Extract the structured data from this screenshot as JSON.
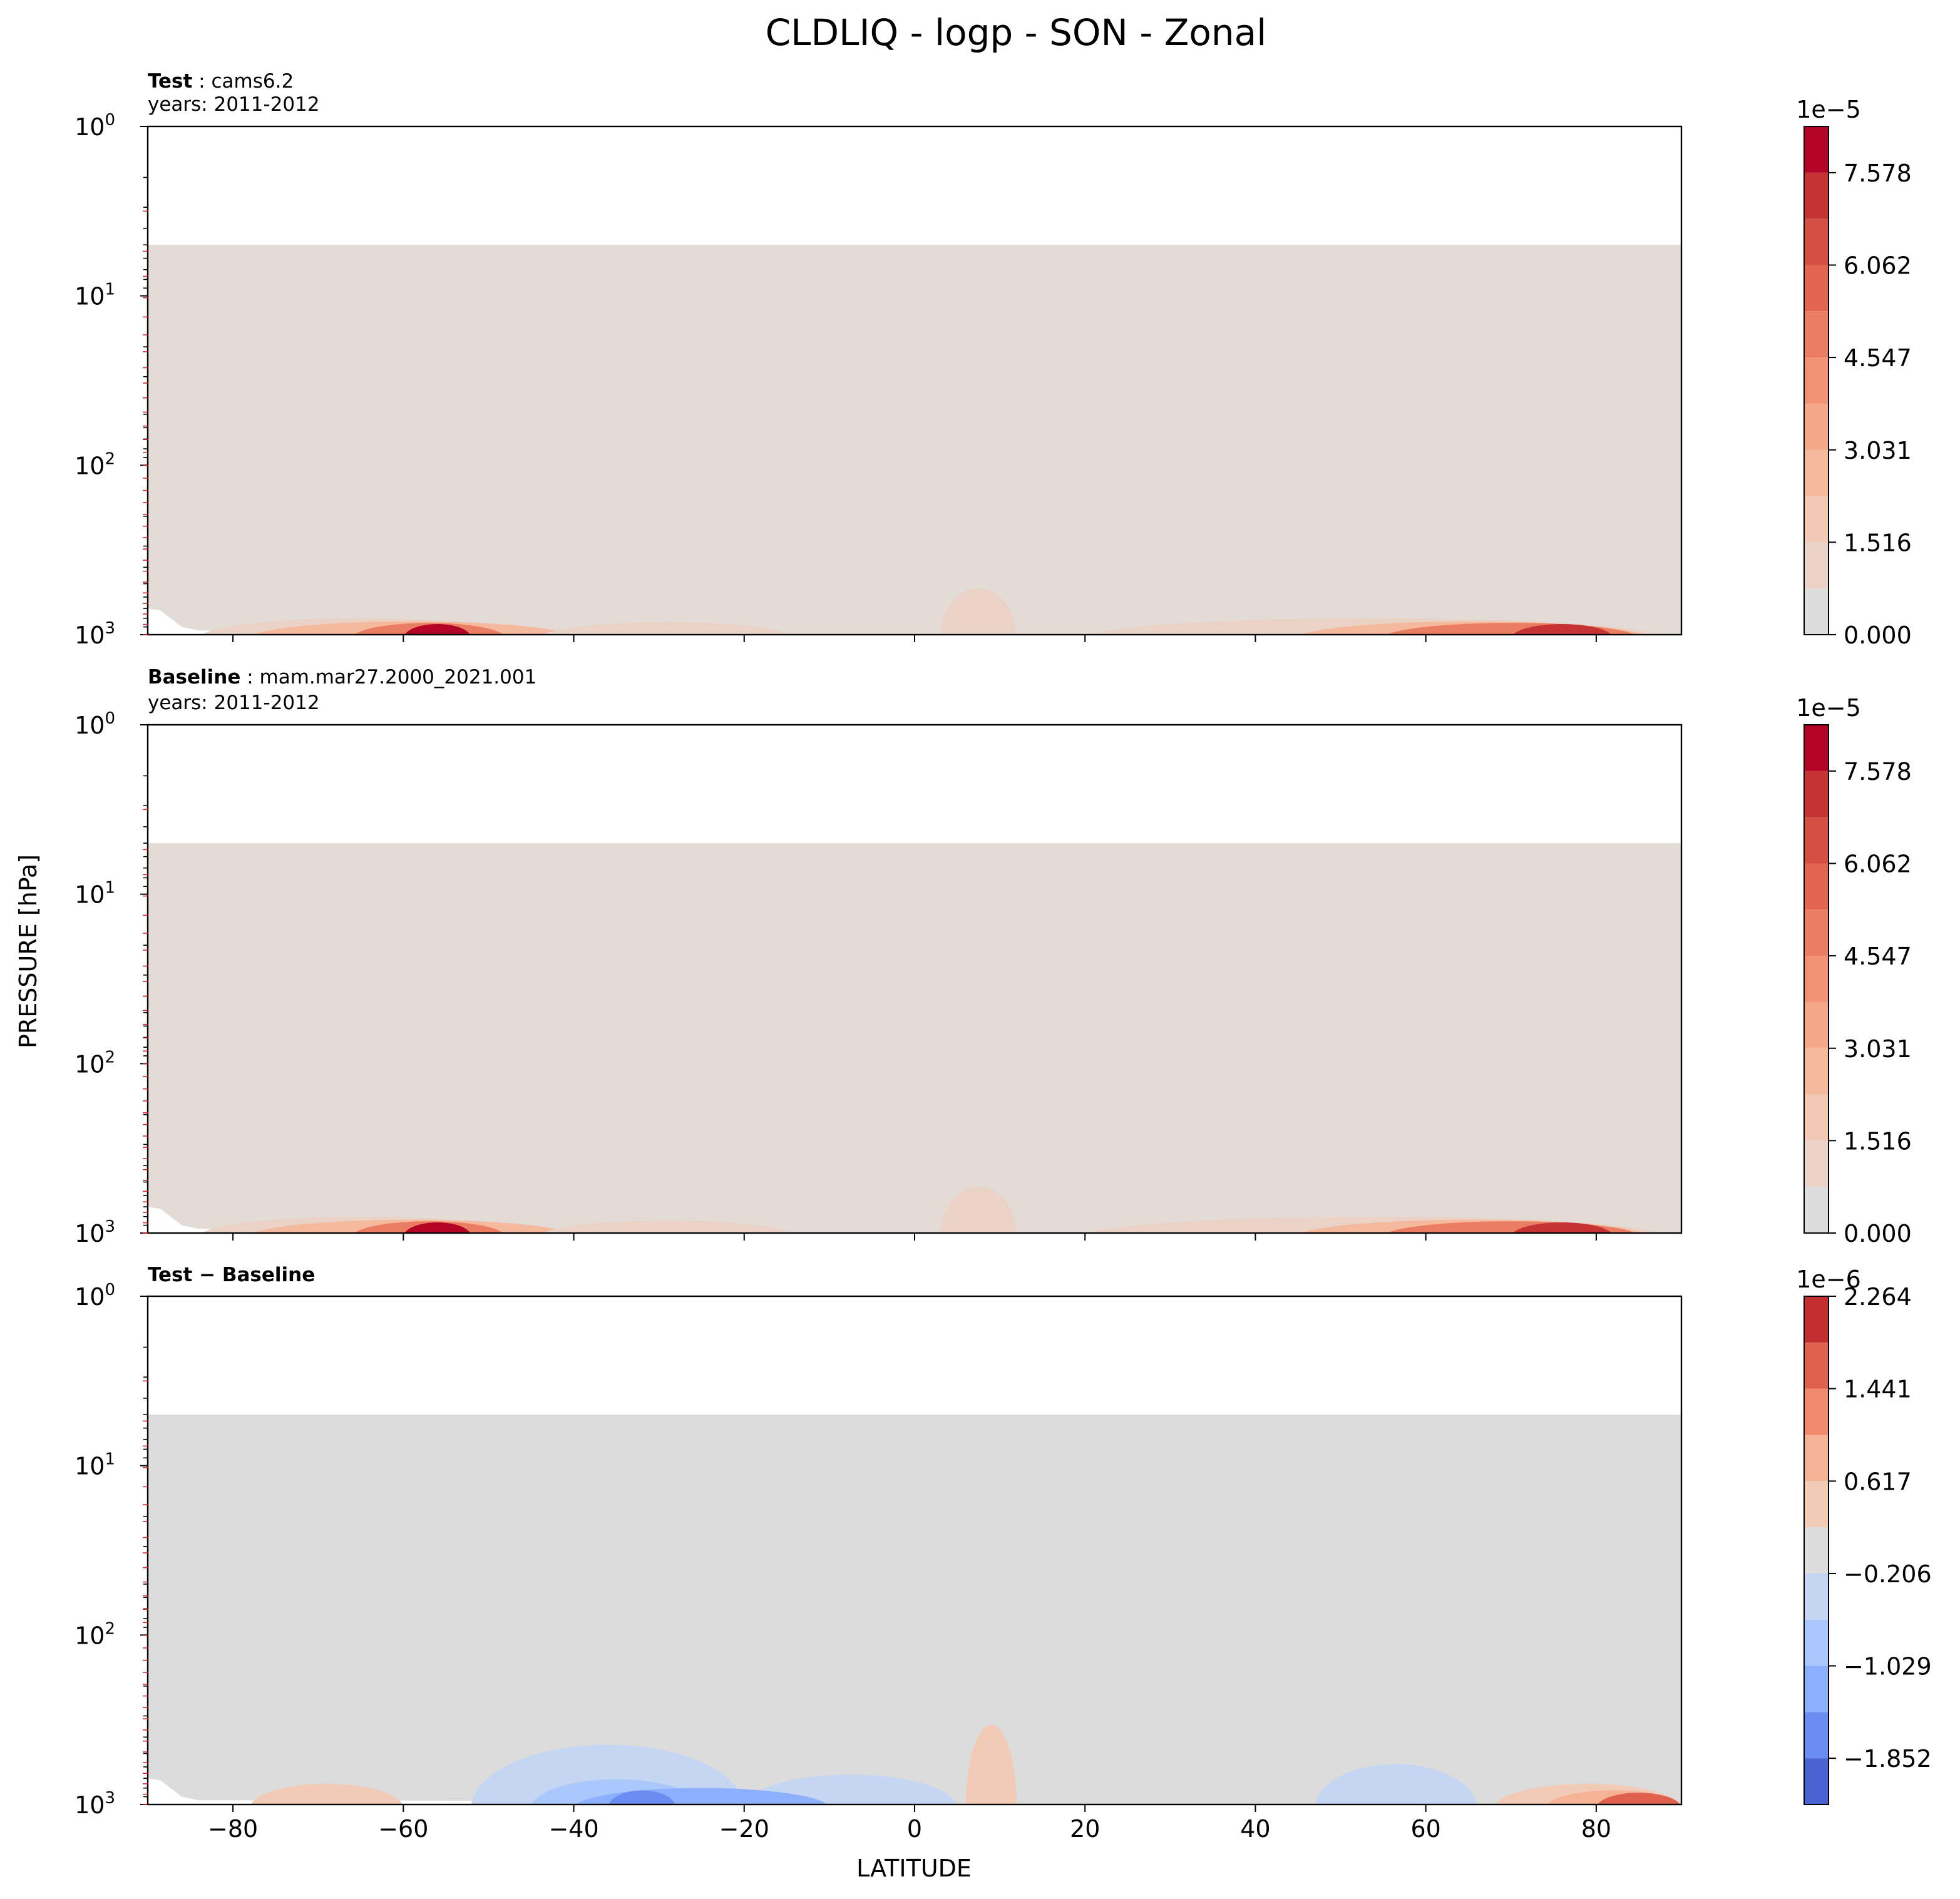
{
  "figure": {
    "suptitle": "CLDLIQ - logp - SON - Zonal",
    "ylabel": "PRESSURE [hPa]",
    "xlabel": "LATITUDE",
    "background_color": "#ffffff"
  },
  "chart_data": [
    {
      "type": "heatmap",
      "panel": "test",
      "title_bold": "Test",
      "title_sep": " : ",
      "title_rest": "cams6.2",
      "subtitle": "years: 2011-2012",
      "x_ticks": [
        -80,
        -60,
        -40,
        -20,
        0,
        20,
        40,
        60,
        80
      ],
      "x_tick_labels": [],
      "xlim": [
        -90,
        90
      ],
      "y_scale": "log",
      "y_inverted": true,
      "ylim": [
        1000,
        1
      ],
      "y_ticks": [
        1,
        10,
        100,
        1000
      ],
      "y_tick_labels": [
        {
          "base": "10",
          "exp": "0"
        },
        {
          "base": "10",
          "exp": "1"
        },
        {
          "base": "10",
          "exp": "2"
        },
        {
          "base": "10",
          "exp": "3"
        }
      ],
      "data_top_hpa": 5,
      "background_value_color": "#e2dbd6",
      "colorbar": {
        "multiplier": "1e−5",
        "vmin": 0.0,
        "vmax": 8.336,
        "levels": [
          0.0,
          0.758,
          1.516,
          2.274,
          3.031,
          3.789,
          4.547,
          5.305,
          6.062,
          6.82,
          7.578,
          8.336
        ],
        "colors": [
          "#dddcdc",
          "#ead3c6",
          "#f2c9b4",
          "#f5b99d",
          "#f5a888",
          "#f29274",
          "#eb7d62",
          "#e36550",
          "#d55042",
          "#c53334",
          "#b40426"
        ],
        "tick_values": [
          0.0,
          1.516,
          3.031,
          4.547,
          6.062,
          7.578
        ],
        "tick_labels": [
          "0.000",
          "1.516",
          "3.031",
          "4.547",
          "6.062",
          "7.578"
        ]
      },
      "features": [
        {
          "lat": [
            -84,
            -46
          ],
          "p_top": 900,
          "level": 1
        },
        {
          "lat": [
            -78,
            -40
          ],
          "p_top": 940,
          "level": 3
        },
        {
          "lat": [
            -66,
            -48
          ],
          "p_top": 960,
          "level": 6
        },
        {
          "lat": [
            -60,
            -52
          ],
          "p_top": 975,
          "level": 10
        },
        {
          "lat": [
            -44,
            -14
          ],
          "p_top": 950,
          "level": 1
        },
        {
          "lat": [
            3,
            12
          ],
          "p_top": 600,
          "level": 1
        },
        {
          "lat": [
            20,
            88
          ],
          "p_top": 900,
          "level": 1
        },
        {
          "lat": [
            45,
            86
          ],
          "p_top": 940,
          "level": 3
        },
        {
          "lat": [
            55,
            85
          ],
          "p_top": 960,
          "level": 6
        },
        {
          "lat": [
            70,
            82
          ],
          "p_top": 975,
          "level": 9
        }
      ]
    },
    {
      "type": "heatmap",
      "panel": "baseline",
      "title_bold": "Baseline",
      "title_sep": " : ",
      "title_rest": "mam.mar27.2000_2021.001",
      "subtitle": "years: 2011-2012",
      "x_ticks": [
        -80,
        -60,
        -40,
        -20,
        0,
        20,
        40,
        60,
        80
      ],
      "x_tick_labels": [],
      "xlim": [
        -90,
        90
      ],
      "y_scale": "log",
      "y_inverted": true,
      "ylim": [
        1000,
        1
      ],
      "y_ticks": [
        1,
        10,
        100,
        1000
      ],
      "y_tick_labels": [
        {
          "base": "10",
          "exp": "0"
        },
        {
          "base": "10",
          "exp": "1"
        },
        {
          "base": "10",
          "exp": "2"
        },
        {
          "base": "10",
          "exp": "3"
        }
      ],
      "data_top_hpa": 5,
      "background_value_color": "#e2dbd6",
      "colorbar": {
        "multiplier": "1e−5",
        "vmin": 0.0,
        "vmax": 8.336,
        "levels": [
          0.0,
          0.758,
          1.516,
          2.274,
          3.031,
          3.789,
          4.547,
          5.305,
          6.062,
          6.82,
          7.578,
          8.336
        ],
        "colors": [
          "#dddcdc",
          "#ead3c6",
          "#f2c9b4",
          "#f5b99d",
          "#f5a888",
          "#f29274",
          "#eb7d62",
          "#e36550",
          "#d55042",
          "#c53334",
          "#b40426"
        ],
        "tick_values": [
          0.0,
          1.516,
          3.031,
          4.547,
          6.062,
          7.578
        ],
        "tick_labels": [
          "0.000",
          "1.516",
          "3.031",
          "4.547",
          "6.062",
          "7.578"
        ]
      },
      "features": [
        {
          "lat": [
            -84,
            -46
          ],
          "p_top": 900,
          "level": 1
        },
        {
          "lat": [
            -78,
            -40
          ],
          "p_top": 940,
          "level": 3
        },
        {
          "lat": [
            -66,
            -48
          ],
          "p_top": 960,
          "level": 6
        },
        {
          "lat": [
            -60,
            -52
          ],
          "p_top": 975,
          "level": 10
        },
        {
          "lat": [
            -44,
            -14
          ],
          "p_top": 950,
          "level": 1
        },
        {
          "lat": [
            3,
            12
          ],
          "p_top": 600,
          "level": 1
        },
        {
          "lat": [
            20,
            88
          ],
          "p_top": 900,
          "level": 1
        },
        {
          "lat": [
            45,
            86
          ],
          "p_top": 940,
          "level": 3
        },
        {
          "lat": [
            55,
            85
          ],
          "p_top": 960,
          "level": 6
        },
        {
          "lat": [
            70,
            82
          ],
          "p_top": 975,
          "level": 9
        }
      ]
    },
    {
      "type": "heatmap",
      "panel": "difference",
      "title_bold": "Test − Baseline",
      "title_sep": "",
      "title_rest": "",
      "subtitle": "",
      "x_ticks": [
        -80,
        -60,
        -40,
        -20,
        0,
        20,
        40,
        60,
        80
      ],
      "x_tick_labels": [
        "−80",
        "−60",
        "−40",
        "−20",
        "0",
        "20",
        "40",
        "60",
        "80"
      ],
      "xlim": [
        -90,
        90
      ],
      "y_scale": "log",
      "y_inverted": true,
      "ylim": [
        1000,
        1
      ],
      "y_ticks": [
        1,
        10,
        100,
        1000
      ],
      "y_tick_labels": [
        {
          "base": "10",
          "exp": "0"
        },
        {
          "base": "10",
          "exp": "1"
        },
        {
          "base": "10",
          "exp": "2"
        },
        {
          "base": "10",
          "exp": "3"
        }
      ],
      "data_top_hpa": 5,
      "background_value_color": "#dcdcdc",
      "colorbar": {
        "multiplier": "1e−6",
        "vmin": -2.264,
        "vmax": 2.264,
        "levels": [
          -2.264,
          -1.852,
          -1.441,
          -1.029,
          -0.617,
          -0.206,
          0.206,
          0.617,
          1.029,
          1.441,
          1.852,
          2.264
        ],
        "colors": [
          "#4a63d3",
          "#6a8bef",
          "#8caffe",
          "#abc8fd",
          "#c5d6f2",
          "#dcdcdc",
          "#f2cbb7",
          "#f6b294",
          "#f08b6e",
          "#de604d",
          "#c32e31"
        ],
        "tick_values": [
          -1.852,
          -1.029,
          -0.206,
          0.617,
          1.441,
          2.264
        ],
        "tick_labels": [
          "−1.852",
          "−1.029",
          "−0.206",
          "0.617",
          "1.441",
          "2.264"
        ]
      },
      "features": [
        {
          "lat": [
            -52,
            -20
          ],
          "p_top": 500,
          "level": 4
        },
        {
          "lat": [
            -20,
            5
          ],
          "p_top": 750,
          "level": 4
        },
        {
          "lat": [
            -45,
            -25
          ],
          "p_top": 800,
          "level": 3
        },
        {
          "lat": [
            -40,
            -10
          ],
          "p_top": 900,
          "level": 2
        },
        {
          "lat": [
            -36,
            -28
          ],
          "p_top": 930,
          "level": 1
        },
        {
          "lat": [
            47,
            66
          ],
          "p_top": 650,
          "level": 4
        },
        {
          "lat": [
            6,
            12
          ],
          "p_top": 380,
          "level": 6
        },
        {
          "lat": [
            -78,
            -60
          ],
          "p_top": 850,
          "level": 6
        },
        {
          "lat": [
            68,
            90
          ],
          "p_top": 850,
          "level": 6
        },
        {
          "lat": [
            74,
            90
          ],
          "p_top": 930,
          "level": 7
        },
        {
          "lat": [
            80,
            90
          ],
          "p_top": 960,
          "level": 9
        }
      ]
    }
  ]
}
